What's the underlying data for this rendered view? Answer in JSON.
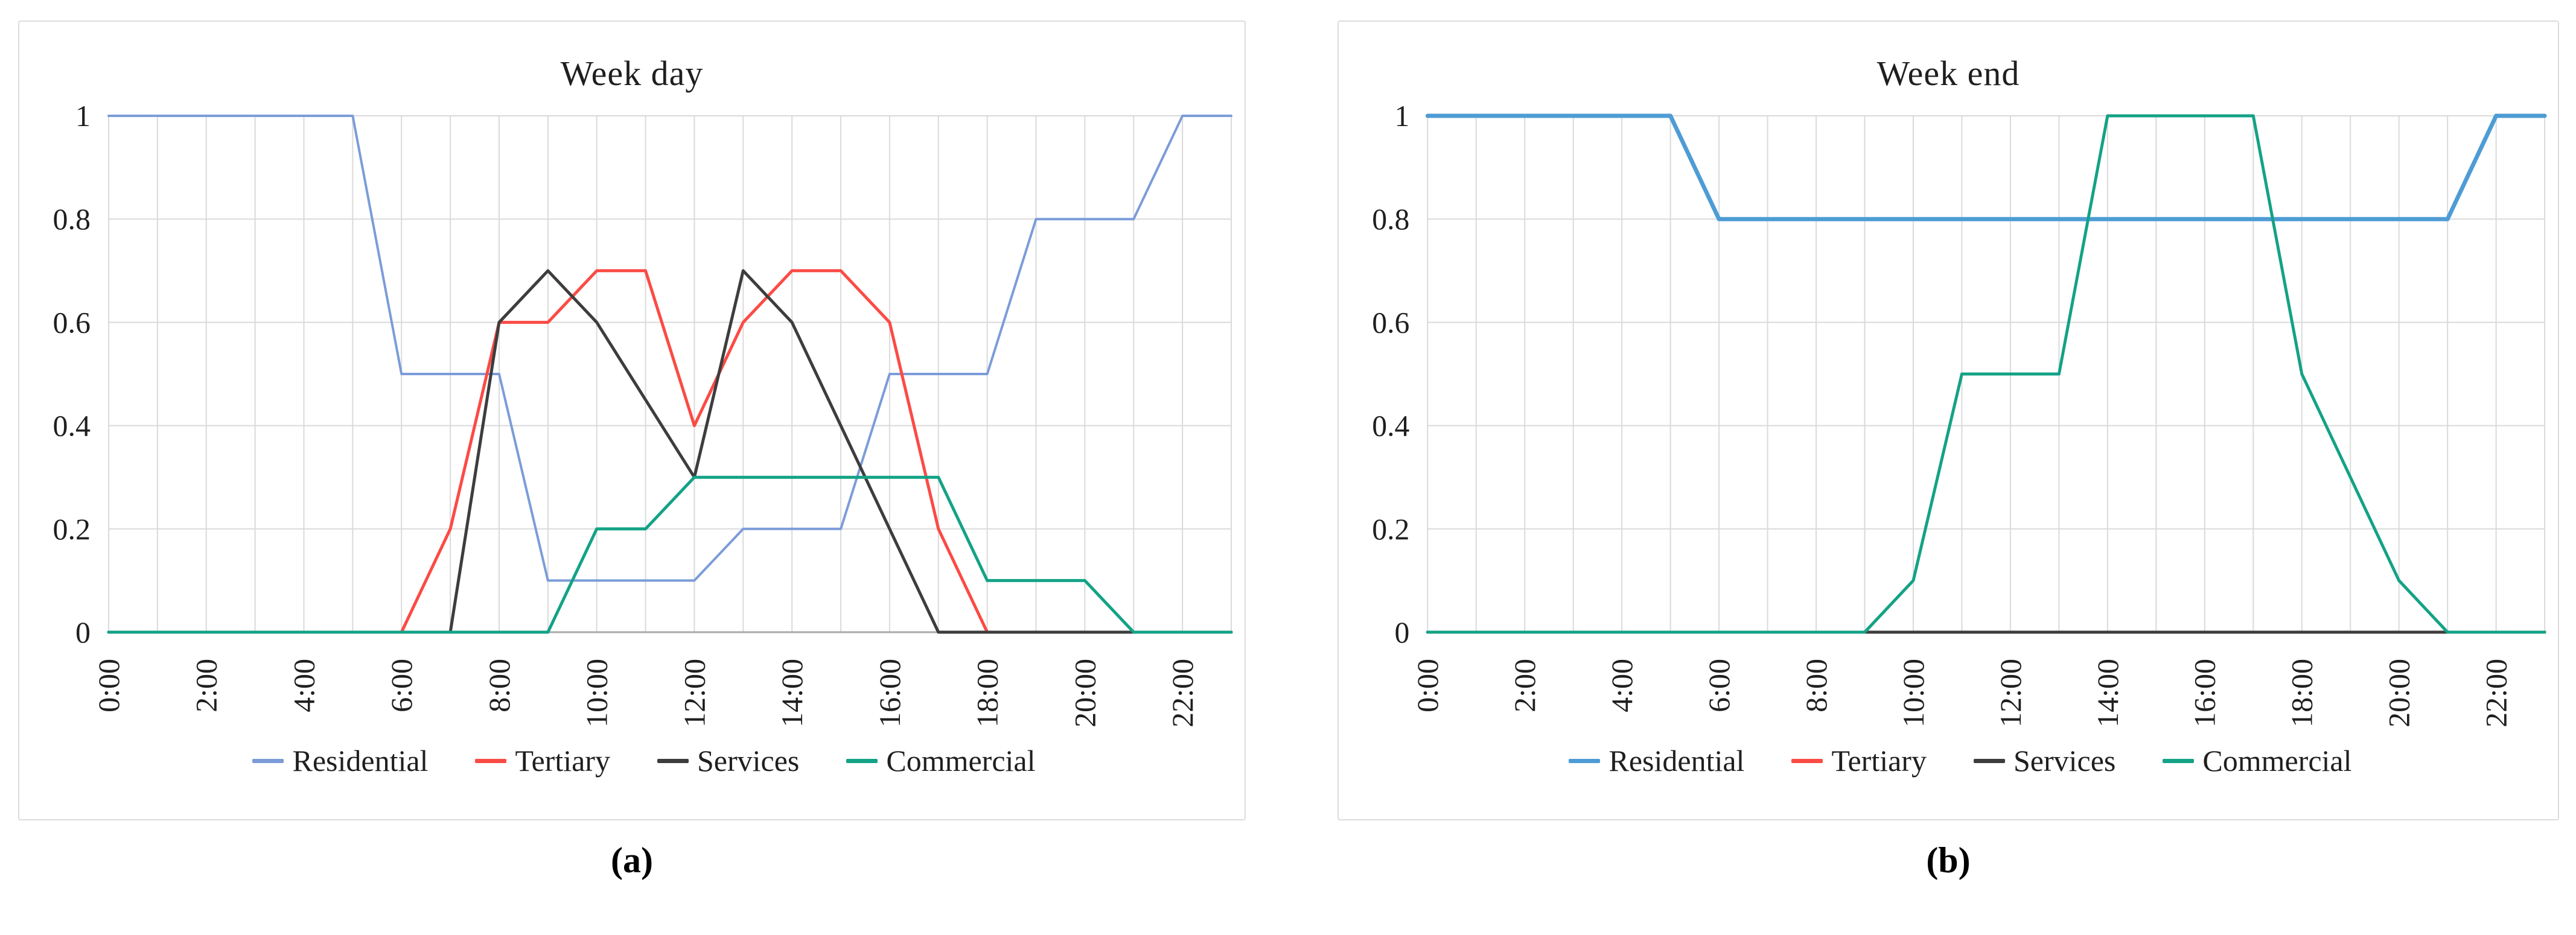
{
  "figure": {
    "captions": {
      "a": "(a)",
      "b": "(b)"
    }
  },
  "style": {
    "grid_color": "#dadada",
    "axis_color": "#a8a8a8",
    "text_color": "#1f1f1f",
    "background": "#ffffff"
  },
  "chart_data": [
    {
      "id": "weekday",
      "type": "line",
      "title": "Week day",
      "x_hours": [
        0,
        1,
        2,
        3,
        4,
        5,
        6,
        7,
        8,
        9,
        10,
        11,
        12,
        13,
        14,
        15,
        16,
        17,
        18,
        19,
        20,
        21,
        22,
        23
      ],
      "x_tick_labels": [
        "0:00",
        "2:00",
        "4:00",
        "6:00",
        "8:00",
        "10:00",
        "12:00",
        "14:00",
        "16:00",
        "18:00",
        "20:00",
        "22:00"
      ],
      "x_tick_every": 2,
      "ylim": [
        0,
        1
      ],
      "y_ticks": [
        0,
        0.2,
        0.4,
        0.6,
        0.8,
        1
      ],
      "y_tick_labels": [
        "0",
        "0.2",
        "0.4",
        "0.6",
        "0.8",
        "1"
      ],
      "grid": {
        "vertical_every_hour": true,
        "horizontal_every": 0.2
      },
      "legend_position": "bottom",
      "series": [
        {
          "name": "Residential",
          "color": "#7b9cd9",
          "stroke_width": 4,
          "values": [
            1,
            1,
            1,
            1,
            1,
            1,
            0.5,
            0.5,
            0.5,
            0.1,
            0.1,
            0.1,
            0.1,
            0.2,
            0.2,
            0.2,
            0.5,
            0.5,
            0.5,
            0.8,
            0.8,
            0.8,
            1,
            1
          ]
        },
        {
          "name": "Tertiary",
          "color": "#fb4b45",
          "stroke_width": 5,
          "values": [
            0,
            0,
            0,
            0,
            0,
            0,
            0,
            0.2,
            0.6,
            0.6,
            0.7,
            0.7,
            0.4,
            0.6,
            0.7,
            0.7,
            0.6,
            0.2,
            0,
            0,
            0,
            0,
            0,
            0
          ]
        },
        {
          "name": "Services",
          "color": "#3d3d3d",
          "stroke_width": 5,
          "values": [
            0,
            0,
            0,
            0,
            0,
            0,
            0,
            0,
            0.6,
            0.7,
            0.6,
            0.45,
            0.3,
            0.7,
            0.6,
            0.4,
            0.2,
            0,
            0,
            0,
            0,
            0,
            0,
            0
          ]
        },
        {
          "name": "Commercial",
          "color": "#14a286",
          "stroke_width": 5,
          "values": [
            0,
            0,
            0,
            0,
            0,
            0,
            0,
            0,
            0,
            0,
            0.2,
            0.2,
            0.3,
            0.3,
            0.3,
            0.3,
            0.3,
            0.3,
            0.1,
            0.1,
            0.1,
            0,
            0,
            0
          ]
        }
      ]
    },
    {
      "id": "weekend",
      "type": "line",
      "title": "Week end",
      "x_hours": [
        0,
        1,
        2,
        3,
        4,
        5,
        6,
        7,
        8,
        9,
        10,
        11,
        12,
        13,
        14,
        15,
        16,
        17,
        18,
        19,
        20,
        21,
        22,
        23
      ],
      "x_tick_labels": [
        "0:00",
        "2:00",
        "4:00",
        "6:00",
        "8:00",
        "10:00",
        "12:00",
        "14:00",
        "16:00",
        "18:00",
        "20:00",
        "22:00"
      ],
      "x_tick_every": 2,
      "ylim": [
        0,
        1
      ],
      "y_ticks": [
        0,
        0.2,
        0.4,
        0.6,
        0.8,
        1
      ],
      "y_tick_labels": [
        "0",
        "0.2",
        "0.4",
        "0.6",
        "0.8",
        "1"
      ],
      "grid": {
        "vertical_every_hour": true,
        "horizontal_every": 0.2
      },
      "legend_position": "bottom",
      "series": [
        {
          "name": "Residential",
          "color": "#4e9cd5",
          "stroke_width": 7,
          "values": [
            1,
            1,
            1,
            1,
            1,
            1,
            0.8,
            0.8,
            0.8,
            0.8,
            0.8,
            0.8,
            0.8,
            0.8,
            0.8,
            0.8,
            0.8,
            0.8,
            0.8,
            0.8,
            0.8,
            0.8,
            1,
            1
          ]
        },
        {
          "name": "Tertiary",
          "color": "#fb4b45",
          "stroke_width": 5,
          "values": [
            0,
            0,
            0,
            0,
            0,
            0,
            0,
            0,
            0,
            0,
            0,
            0,
            0,
            0,
            0,
            0,
            0,
            0,
            0,
            0,
            0,
            0,
            0,
            0
          ]
        },
        {
          "name": "Services",
          "color": "#3d3d3d",
          "stroke_width": 5,
          "values": [
            0,
            0,
            0,
            0,
            0,
            0,
            0,
            0,
            0,
            0,
            0,
            0,
            0,
            0,
            0,
            0,
            0,
            0,
            0,
            0,
            0,
            0,
            0,
            0
          ]
        },
        {
          "name": "Commercial",
          "color": "#14a286",
          "stroke_width": 5,
          "values": [
            0,
            0,
            0,
            0,
            0,
            0,
            0,
            0,
            0,
            0,
            0.1,
            0.5,
            0.5,
            0.5,
            1,
            1,
            1,
            1,
            0.5,
            0.3,
            0.1,
            0,
            0,
            0
          ]
        }
      ]
    }
  ]
}
